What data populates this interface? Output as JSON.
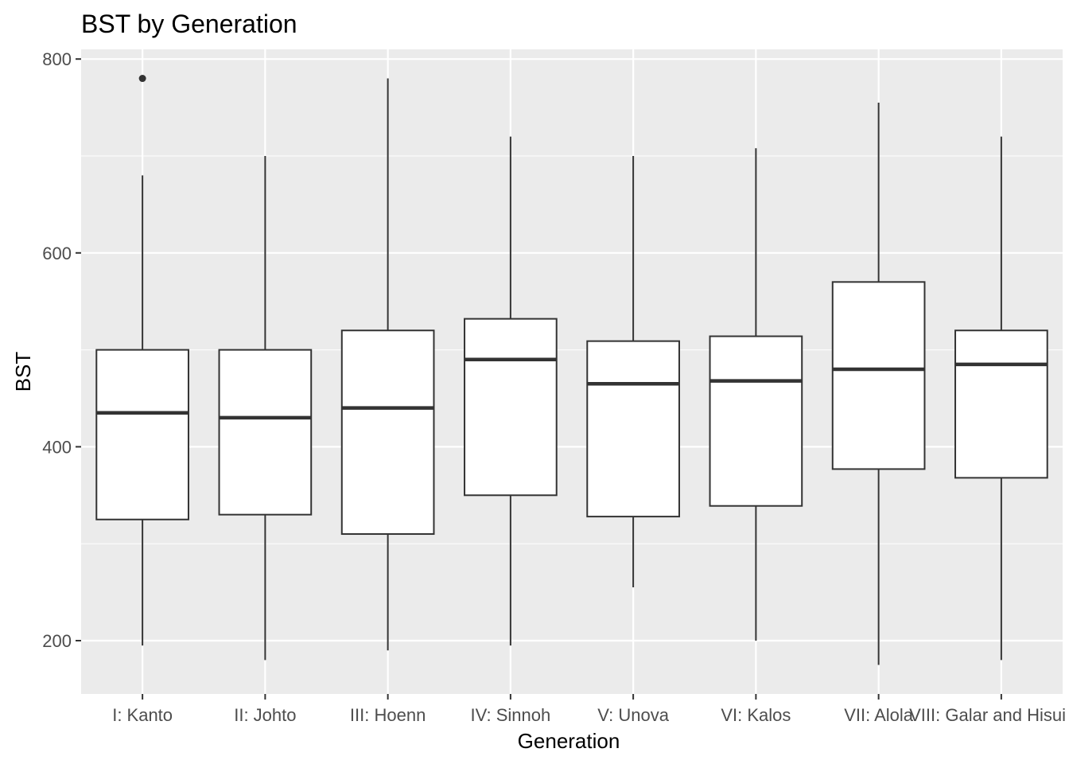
{
  "chart_data": {
    "type": "boxplot",
    "title": "BST by Generation",
    "xlabel": "Generation",
    "ylabel": "BST",
    "ylim": [
      145,
      810
    ],
    "y_ticks": [
      200,
      400,
      600,
      800
    ],
    "categories": [
      "I: Kanto",
      "II: Johto",
      "III: Hoenn",
      "IV: Sinnoh",
      "V: Unova",
      "VI: Kalos",
      "VII: Alola",
      "VIII: Galar and Hisui"
    ],
    "boxes": [
      {
        "category": "I: Kanto",
        "min": 195,
        "q1": 325,
        "median": 435,
        "q3": 500,
        "max": 680,
        "outliers": [
          780
        ]
      },
      {
        "category": "II: Johto",
        "min": 180,
        "q1": 330,
        "median": 430,
        "q3": 500,
        "max": 700,
        "outliers": []
      },
      {
        "category": "III: Hoenn",
        "min": 190,
        "q1": 310,
        "median": 440,
        "q3": 520,
        "max": 780,
        "outliers": []
      },
      {
        "category": "IV: Sinnoh",
        "min": 195,
        "q1": 350,
        "median": 490,
        "q3": 532,
        "max": 720,
        "outliers": []
      },
      {
        "category": "V: Unova",
        "min": 255,
        "q1": 328,
        "median": 465,
        "q3": 509,
        "max": 700,
        "outliers": []
      },
      {
        "category": "VI: Kalos",
        "min": 200,
        "q1": 339,
        "median": 468,
        "q3": 514,
        "max": 708,
        "outliers": []
      },
      {
        "category": "VII: Alola",
        "min": 175,
        "q1": 377,
        "median": 480,
        "q3": 570,
        "max": 755,
        "outliers": []
      },
      {
        "category": "VIII: Galar and Hisui",
        "min": 180,
        "q1": 368,
        "median": 485,
        "q3": 520,
        "max": 720,
        "outliers": []
      }
    ],
    "grid": true,
    "legend": "none",
    "colors": {
      "panel_background": "#ebebeb",
      "grid_line": "#ffffff",
      "box_fill": "#ffffff",
      "box_stroke": "#333333",
      "tick_mark": "#333333",
      "tick_text": "#4d4d4d"
    }
  }
}
